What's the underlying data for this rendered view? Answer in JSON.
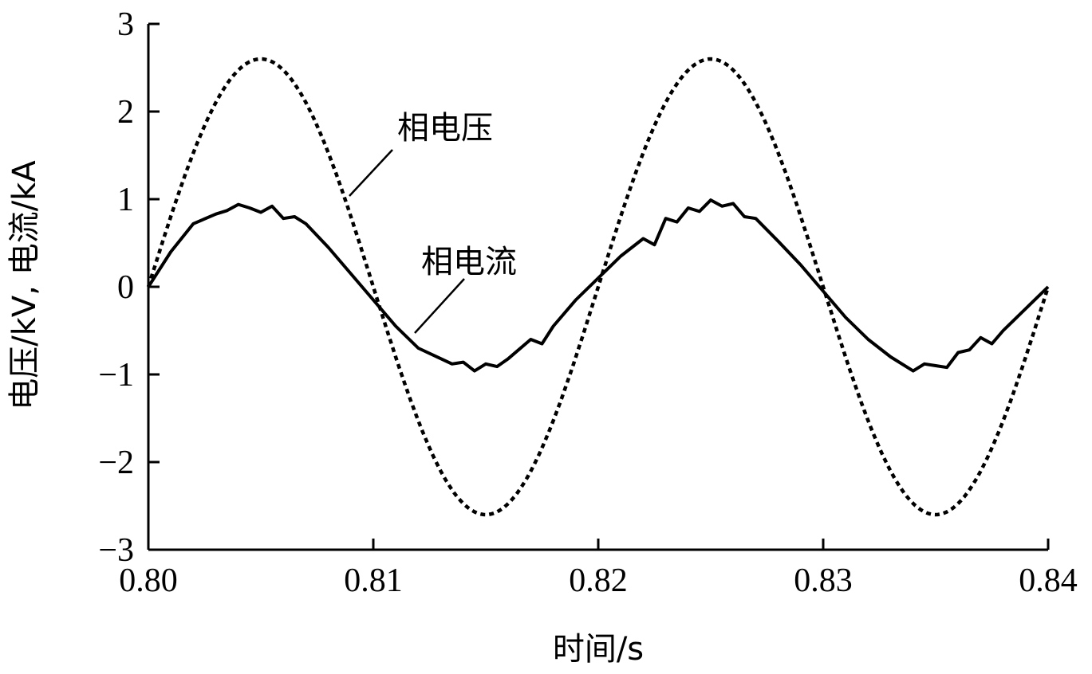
{
  "chart_data": {
    "type": "line",
    "xlabel": "时间/s",
    "ylabel": "电压/kV, 电流/kA",
    "xlim": [
      0.8,
      0.84
    ],
    "ylim": [
      -3,
      3
    ],
    "x_ticks": [
      "0.80",
      "0.81",
      "0.82",
      "0.83",
      "0.84"
    ],
    "y_ticks": [
      "3",
      "2",
      "1",
      "0",
      "−1",
      "−2",
      "−3"
    ],
    "grid": false,
    "series": [
      {
        "name": "相电压",
        "style": "dotted",
        "amplitude": 2.6,
        "frequency_hz": 50,
        "phase_start_s": 0.8,
        "x": [
          0.8,
          0.8025,
          0.805,
          0.8075,
          0.81,
          0.8125,
          0.815,
          0.8175,
          0.82,
          0.8225,
          0.825,
          0.8275,
          0.83,
          0.8325,
          0.835,
          0.8375,
          0.84
        ],
        "values": [
          0,
          1.84,
          2.6,
          1.84,
          0,
          -1.84,
          -2.6,
          -1.84,
          0,
          1.84,
          2.6,
          1.84,
          0,
          -1.84,
          -2.6,
          -1.84,
          0
        ]
      },
      {
        "name": "相电流",
        "style": "solid",
        "x": [
          0.8,
          0.801,
          0.802,
          0.803,
          0.8035,
          0.804,
          0.8045,
          0.805,
          0.8055,
          0.806,
          0.8065,
          0.807,
          0.808,
          0.809,
          0.81,
          0.811,
          0.812,
          0.813,
          0.8135,
          0.814,
          0.8145,
          0.815,
          0.8155,
          0.816,
          0.817,
          0.8175,
          0.818,
          0.819,
          0.82,
          0.821,
          0.822,
          0.8225,
          0.823,
          0.8235,
          0.824,
          0.8245,
          0.825,
          0.8255,
          0.826,
          0.8265,
          0.827,
          0.828,
          0.829,
          0.83,
          0.831,
          0.832,
          0.833,
          0.834,
          0.8345,
          0.835,
          0.8355,
          0.836,
          0.8365,
          0.837,
          0.8375,
          0.838,
          0.839,
          0.84
        ],
        "values": [
          0,
          0.4,
          0.72,
          0.83,
          0.87,
          0.94,
          0.9,
          0.85,
          0.92,
          0.78,
          0.8,
          0.72,
          0.45,
          0.15,
          -0.15,
          -0.45,
          -0.7,
          -0.82,
          -0.88,
          -0.86,
          -0.96,
          -0.88,
          -0.91,
          -0.82,
          -0.6,
          -0.65,
          -0.45,
          -0.15,
          0.1,
          0.35,
          0.55,
          0.48,
          0.78,
          0.74,
          0.9,
          0.86,
          0.99,
          0.92,
          0.95,
          0.8,
          0.78,
          0.52,
          0.25,
          -0.05,
          -0.35,
          -0.6,
          -0.8,
          -0.96,
          -0.88,
          -0.9,
          -0.92,
          -0.75,
          -0.72,
          -0.58,
          -0.65,
          -0.5,
          -0.25,
          0
        ]
      }
    ],
    "annotations": [
      {
        "text": "相电压",
        "target_series": "相电压"
      },
      {
        "text": "相电流",
        "target_series": "相电流"
      }
    ]
  }
}
